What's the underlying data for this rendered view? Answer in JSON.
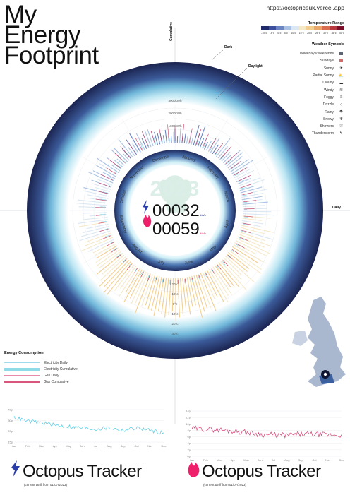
{
  "header": {
    "title_lines": [
      "My",
      "Energy",
      "Footprint"
    ],
    "url": "https://octopriceuk.vercel.app"
  },
  "temperature_legend": {
    "title": "Temperature Range",
    "ticks": [
      "-10°c",
      "-5°c",
      "0°c",
      "5°c",
      "10°c",
      "15°c",
      "20°c",
      "25°c",
      "30°c",
      "35°c",
      "40°c"
    ],
    "colors": [
      "#1f2a6b",
      "#3b4f9c",
      "#6a85c2",
      "#a9c2e3",
      "#dbe7f2",
      "#f5e9c8",
      "#f2cf8f",
      "#eba66a",
      "#d96d4f",
      "#b83a3f",
      "#7a0f2a"
    ]
  },
  "weather_symbols": {
    "title": "Weather Symbols",
    "items": [
      {
        "label": "Weekdays/Weekends",
        "symbol": "square",
        "color": "#5b6472"
      },
      {
        "label": "Sundays",
        "symbol": "square",
        "color": "#d8696a"
      },
      {
        "label": "Sunny",
        "symbol": "☀"
      },
      {
        "label": "Partial Sunny",
        "symbol": "⛅"
      },
      {
        "label": "Cloudy",
        "symbol": "☁"
      },
      {
        "label": "Windy",
        "symbol": "≋"
      },
      {
        "label": "Foggy",
        "symbol": "≡"
      },
      {
        "label": "Drizzle",
        "symbol": "⁘"
      },
      {
        "label": "Rainy",
        "symbol": "☂"
      },
      {
        "label": "Snowy",
        "symbol": "❄"
      },
      {
        "label": "Showers",
        "symbol": "⛆"
      },
      {
        "label": "Thunderstorm",
        "symbol": "ϟ"
      }
    ]
  },
  "ring_labels": {
    "dark": "Dark",
    "daylight": "Daylight",
    "daily": "Daily",
    "cumulative": "Cumulative"
  },
  "center": {
    "year": "2023",
    "electricity_value": "00032",
    "electricity_unit": "kWh",
    "gas_value": "00059",
    "gas_unit": "kWh"
  },
  "energy_legend": {
    "title": "Energy Consumption",
    "items": [
      {
        "label": "Electricity Daily",
        "color": "#9fdcea",
        "style": "thin"
      },
      {
        "label": "Electricity Cumulative",
        "color": "#8fdbe8",
        "style": "thick"
      },
      {
        "label": "Gas Daily",
        "color": "#e98aa9",
        "style": "thin"
      },
      {
        "label": "Gas Cumulative",
        "color": "#d9577e",
        "style": "thick"
      }
    ]
  },
  "footer": {
    "left_title": "Octopus Tracker",
    "left_subtitle": "(current tariff from 01/07/2023)",
    "right_title": "Octopus Tracker",
    "right_subtitle": "(current tariff from 01/07/2023)",
    "electricity_color": "#2b3ea8",
    "gas_color": "#ee1f6b"
  },
  "chart_data": [
    {
      "type": "radial-bar",
      "title": "",
      "categories": [
        "January",
        "February",
        "March",
        "April",
        "May",
        "June",
        "July",
        "August",
        "September",
        "October",
        "November",
        "December"
      ],
      "cumulative_ring_labels": [
        "1000kWh",
        "2000kWh",
        "3000kWh"
      ],
      "daily_ring_labels": [
        "20°c",
        "10°c",
        "0°c",
        "10°c",
        "20°c",
        "30°c"
      ],
      "series": [
        {
          "name": "Electricity Daily",
          "color": "#7fd3e6"
        },
        {
          "name": "Gas Daily",
          "color": "#c9395f"
        }
      ]
    },
    {
      "type": "line",
      "name": "Electricity price",
      "x": [
        "Jan",
        "Feb",
        "Mar",
        "Apr",
        "May",
        "Jun",
        "Jul",
        "Aug",
        "Sep",
        "Oct",
        "Nov",
        "Dec"
      ],
      "values": [
        0.34,
        0.31,
        0.3,
        0.28,
        0.27,
        0.26,
        0.25,
        0.26,
        0.24,
        0.26,
        0.24,
        0.22
      ],
      "ylim": [
        0.15,
        0.4
      ],
      "ytick_labels": [
        "40p",
        "30p",
        "20p",
        "15p"
      ],
      "color": "#5fd0e3"
    },
    {
      "type": "line",
      "name": "Gas price",
      "x": [
        "Jan",
        "Feb",
        "Mar",
        "Apr",
        "May",
        "Jun",
        "Jul",
        "Aug",
        "Sep",
        "Oct",
        "Nov",
        "Dec"
      ],
      "values": [
        0.086,
        0.084,
        0.082,
        0.078,
        0.074,
        0.068,
        0.066,
        0.065,
        0.068,
        0.068,
        0.066,
        0.066
      ],
      "ylim": [
        0.0,
        0.14
      ],
      "ytick_labels": [
        "14p",
        "12p",
        "10p",
        "8p",
        "6p",
        "4p",
        "2p",
        "0p"
      ],
      "color": "#d64c7c"
    }
  ]
}
